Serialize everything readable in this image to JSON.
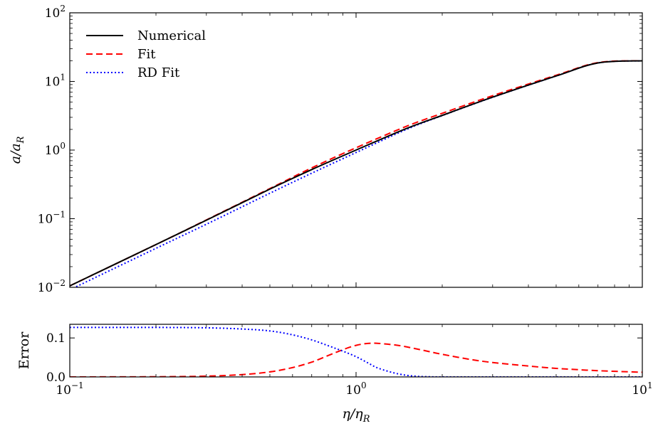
{
  "chart_data": [
    {
      "type": "line",
      "panel": "top",
      "xscale": "log",
      "yscale": "log",
      "xlim": [
        0.1,
        10
      ],
      "ylim": [
        0.01,
        100
      ],
      "xlabel": "",
      "ylabel": "a/aR",
      "yticks": [
        {
          "value": 0.01,
          "base": "10",
          "exp": "−2"
        },
        {
          "value": 0.1,
          "base": "10",
          "exp": "−1"
        },
        {
          "value": 1,
          "base": "10",
          "exp": "0"
        },
        {
          "value": 10,
          "base": "10",
          "exp": "1"
        },
        {
          "value": 100,
          "base": "10",
          "exp": "2"
        }
      ],
      "legend": {
        "placement": "top-left",
        "entries": [
          {
            "label": "Numerical",
            "style": "solid",
            "color": "#000000"
          },
          {
            "label": "Fit",
            "style": "dashed",
            "color": "#ff0000"
          },
          {
            "label": "RD Fit",
            "style": "dotted",
            "color": "#0000ff"
          }
        ]
      },
      "x": [
        0.1,
        0.2,
        0.3,
        0.5,
        0.7,
        1.0,
        1.5,
        2.0,
        3.0,
        5.0,
        7.0,
        10.0
      ],
      "series": [
        {
          "name": "Numerical",
          "color": "#000000",
          "style": "solid",
          "values": [
            0.0105,
            0.042,
            0.095,
            0.27,
            0.52,
            1.0,
            2.06,
            3.2,
            5.9,
            12.0,
            18.6,
            20.0
          ]
        },
        {
          "name": "Fit",
          "color": "#ff0000",
          "style": "dashed",
          "values": [
            0.0105,
            0.042,
            0.096,
            0.275,
            0.55,
            1.08,
            2.22,
            3.43,
            6.2,
            12.3,
            18.8,
            20.0
          ]
        },
        {
          "name": "RD Fit",
          "color": "#0000ff",
          "style": "dotted",
          "values": [
            0.0092,
            0.037,
            0.083,
            0.235,
            0.46,
            0.92,
            2.0,
            3.18,
            5.88,
            12.0,
            18.6,
            20.0
          ]
        }
      ]
    },
    {
      "type": "line",
      "panel": "bottom",
      "xscale": "log",
      "yscale": "linear",
      "xlim": [
        0.1,
        10
      ],
      "ylim": [
        0.0,
        0.135
      ],
      "xlabel": "η/ηR",
      "ylabel": "Error",
      "xticks": [
        {
          "value": 0.1,
          "base": "10",
          "exp": "−1"
        },
        {
          "value": 1,
          "base": "10",
          "exp": "0"
        },
        {
          "value": 10,
          "base": "10",
          "exp": "1"
        }
      ],
      "yticks": [
        {
          "value": 0.0,
          "label": "0.0"
        },
        {
          "value": 0.1,
          "label": "0.1"
        }
      ],
      "x": [
        0.1,
        0.2,
        0.3,
        0.4,
        0.5,
        0.6,
        0.7,
        0.8,
        0.9,
        1.0,
        1.1,
        1.2,
        1.4,
        1.6,
        1.8,
        2.0,
        2.5,
        3.0,
        4.0,
        5.0,
        7.0,
        10.0
      ],
      "series": [
        {
          "name": "Fit",
          "color": "#ff0000",
          "style": "dashed",
          "values": [
            0.0,
            0.0005,
            0.002,
            0.006,
            0.013,
            0.024,
            0.038,
            0.055,
            0.07,
            0.081,
            0.086,
            0.086,
            0.081,
            0.073,
            0.065,
            0.058,
            0.045,
            0.037,
            0.028,
            0.022,
            0.016,
            0.012
          ]
        },
        {
          "name": "RD Fit",
          "color": "#0000ff",
          "style": "dotted",
          "values": [
            0.127,
            0.127,
            0.126,
            0.123,
            0.118,
            0.108,
            0.095,
            0.08,
            0.066,
            0.052,
            0.036,
            0.022,
            0.008,
            0.002,
            0.0005,
            0.0,
            0.0,
            0.0,
            0.0,
            0.0,
            0.0,
            0.0
          ]
        }
      ]
    }
  ]
}
